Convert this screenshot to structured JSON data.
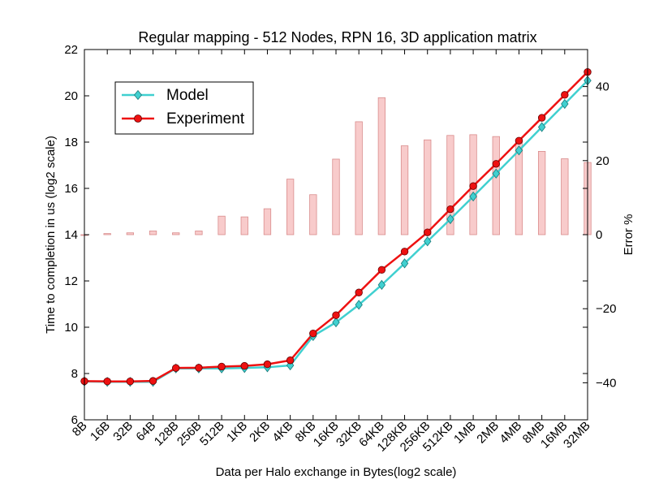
{
  "chart_data": {
    "type": "line",
    "title": "Regular mapping - 512 Nodes, RPN 16, 3D application matrix",
    "xlabel": "Data per Halo exchange in Bytes(log2 scale)",
    "ylabel": "Time to completion in us (log2 scale)",
    "y2label": "Error %",
    "categories": [
      "8B",
      "16B",
      "32B",
      "64B",
      "128B",
      "256B",
      "512B",
      "1KB",
      "2KB",
      "4KB",
      "8KB",
      "16KB",
      "32KB",
      "64KB",
      "128KB",
      "256KB",
      "512KB",
      "1MB",
      "2MB",
      "4MB",
      "8MB",
      "16MB",
      "32MB"
    ],
    "ylim": [
      6,
      22
    ],
    "yticks": [
      6,
      8,
      10,
      12,
      14,
      16,
      18,
      20,
      22
    ],
    "y2lim": [
      -50,
      50
    ],
    "y2ticks": [
      -40,
      -20,
      0,
      20,
      40
    ],
    "legend_position": "upper-left",
    "series": [
      {
        "name": "Model",
        "axis": "left",
        "color": "#40d0d0",
        "marker": "diamond",
        "values": [
          7.66,
          7.64,
          7.64,
          7.64,
          8.22,
          8.22,
          8.22,
          8.24,
          8.27,
          8.35,
          9.62,
          10.21,
          10.97,
          11.83,
          12.76,
          13.71,
          14.67,
          15.65,
          16.64,
          17.64,
          18.65,
          19.65,
          20.66
        ]
      },
      {
        "name": "Experiment",
        "axis": "left",
        "color": "#ee1111",
        "marker": "circle",
        "values": [
          7.67,
          7.66,
          7.66,
          7.68,
          8.24,
          8.25,
          8.3,
          8.33,
          8.4,
          8.57,
          9.73,
          10.52,
          11.5,
          12.48,
          13.27,
          14.1,
          15.1,
          16.1,
          17.06,
          18.06,
          19.05,
          20.04,
          21.03
        ]
      },
      {
        "name": "Error",
        "axis": "right",
        "type": "bar",
        "color": "#f4a8a8",
        "values": [
          0,
          0.3,
          0.5,
          1,
          0.5,
          1,
          5,
          4.8,
          7,
          15,
          10.8,
          20.4,
          30.5,
          37,
          24,
          25.6,
          26.8,
          27,
          26.5,
          25.7,
          22.5,
          20.5,
          19.5
        ]
      }
    ]
  }
}
